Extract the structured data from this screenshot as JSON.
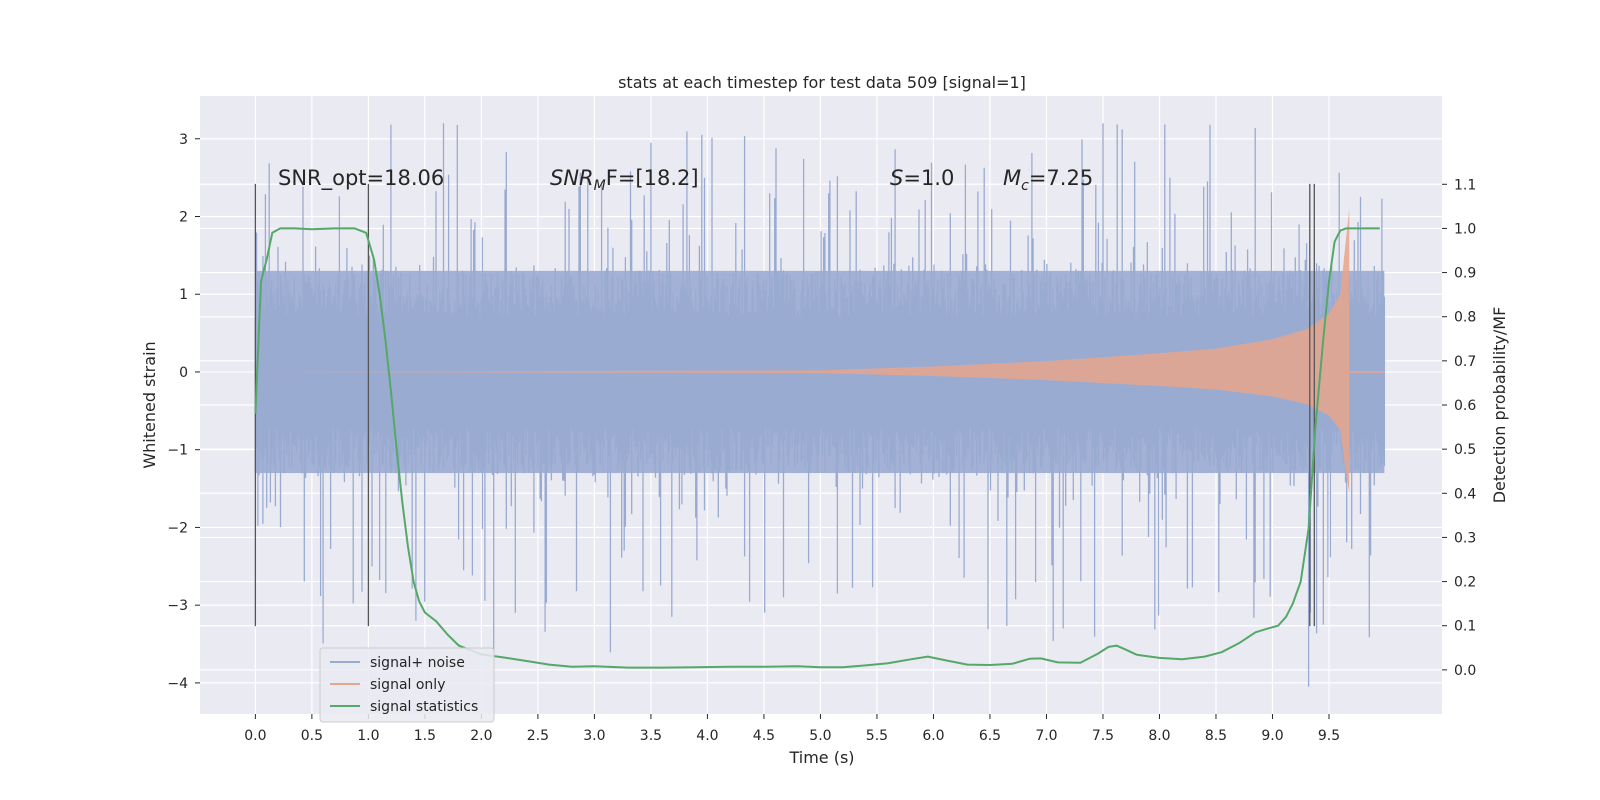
{
  "chart_data": {
    "type": "line",
    "title": "stats at each timestep for test data 509 [signal=1]",
    "xlabel": "Time (s)",
    "ylabel": "Whitened strain",
    "y2label": "Detection probability/MF",
    "xlim": [
      -0.49,
      10.5
    ],
    "ylim": [
      -4.4,
      3.55
    ],
    "y2lim": [
      -0.1,
      1.3
    ],
    "xticks": [
      "0.0",
      "0.5",
      "1.0",
      "1.5",
      "2.0",
      "2.5",
      "3.0",
      "3.5",
      "4.0",
      "4.5",
      "5.0",
      "5.5",
      "6.0",
      "6.5",
      "7.0",
      "7.5",
      "8.0",
      "8.5",
      "9.0",
      "9.5"
    ],
    "yticks": [
      "3",
      "2",
      "1",
      "0",
      "−1",
      "−2",
      "−3",
      "−4"
    ],
    "y2ticks": [
      "1.1",
      "1.0",
      "0.9",
      "0.8",
      "0.7",
      "0.6",
      "0.5",
      "0.4",
      "0.3",
      "0.2",
      "0.1",
      "0.0"
    ],
    "grid": true,
    "legend_position": "lower-left",
    "annotations": {
      "snr_opt": "SNR_opt=18.06",
      "snr_mf_base": "SNR",
      "snr_mf_sub": "M",
      "snr_mf_tail": "F=[18.2]",
      "s_sym": "S",
      "s_val": "=1.0",
      "mc_sym": "M",
      "mc_sub": "c",
      "mc_val": "=7.25"
    },
    "series": [
      {
        "name": "signal+ noise",
        "color": "#9aabd1",
        "x_range": [
          0.0,
          9.99
        ],
        "envelope": {
          "typical_abs": 1.3,
          "peak_max": 3.2,
          "peak_min": -4.05
        }
      },
      {
        "name": "signal only",
        "color": "#e8a48c",
        "x_range": [
          0.0,
          9.68
        ],
        "envelope_x": [
          0.0,
          5.0,
          6.0,
          7.0,
          8.0,
          8.5,
          9.0,
          9.3,
          9.5,
          9.6,
          9.65,
          9.68
        ],
        "envelope_amp": [
          0.0,
          0.02,
          0.07,
          0.14,
          0.24,
          0.3,
          0.42,
          0.55,
          0.75,
          1.0,
          1.7,
          2.1
        ]
      },
      {
        "name": "signal statistics",
        "color": "#55a868",
        "axis": "right",
        "x": [
          0.0,
          0.05,
          0.1,
          0.15,
          0.22,
          0.35,
          0.5,
          0.7,
          0.88,
          0.98,
          1.05,
          1.1,
          1.15,
          1.2,
          1.25,
          1.3,
          1.35,
          1.4,
          1.45,
          1.5,
          1.55,
          1.6,
          1.7,
          1.8,
          2.0,
          2.2,
          2.4,
          2.6,
          2.8,
          3.0,
          3.3,
          3.6,
          3.9,
          4.2,
          4.5,
          4.8,
          5.0,
          5.2,
          5.4,
          5.6,
          5.8,
          5.95,
          6.1,
          6.3,
          6.5,
          6.7,
          6.85,
          6.95,
          7.1,
          7.3,
          7.45,
          7.55,
          7.62,
          7.7,
          7.8,
          8.0,
          8.2,
          8.4,
          8.55,
          8.7,
          8.85,
          8.95,
          9.05,
          9.12,
          9.18,
          9.25,
          9.32,
          9.38,
          9.45,
          9.5,
          9.55,
          9.6,
          9.65,
          9.7,
          9.8,
          9.9,
          9.95
        ],
        "y": [
          0.58,
          0.88,
          0.93,
          0.99,
          1.0,
          1.0,
          0.998,
          1.0,
          1.0,
          0.99,
          0.93,
          0.85,
          0.75,
          0.63,
          0.5,
          0.38,
          0.28,
          0.2,
          0.155,
          0.13,
          0.12,
          0.11,
          0.08,
          0.055,
          0.035,
          0.028,
          0.02,
          0.012,
          0.007,
          0.008,
          0.005,
          0.005,
          0.006,
          0.007,
          0.007,
          0.008,
          0.006,
          0.006,
          0.01,
          0.015,
          0.024,
          0.03,
          0.022,
          0.012,
          0.011,
          0.014,
          0.025,
          0.026,
          0.017,
          0.016,
          0.036,
          0.052,
          0.055,
          0.046,
          0.034,
          0.027,
          0.024,
          0.03,
          0.04,
          0.06,
          0.085,
          0.093,
          0.1,
          0.12,
          0.15,
          0.2,
          0.32,
          0.55,
          0.75,
          0.88,
          0.97,
          0.995,
          1.0,
          1.0,
          1.0,
          1.0,
          1.0
        ]
      }
    ],
    "vlines_x": [
      0.0,
      1.0,
      9.33,
      9.37
    ],
    "vlines_y": [
      -3.27,
      2.42
    ]
  }
}
